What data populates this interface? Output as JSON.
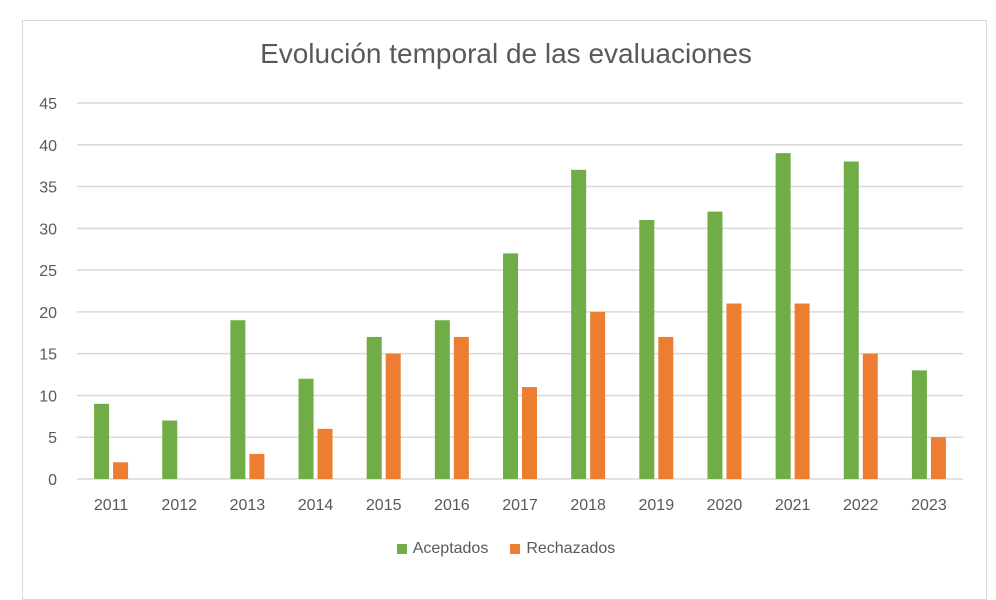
{
  "chart_data": {
    "type": "bar",
    "title": "Evolución temporal de las evaluaciones",
    "xlabel": "",
    "ylabel": "",
    "categories": [
      "2011",
      "2012",
      "2013",
      "2014",
      "2015",
      "2016",
      "2017",
      "2018",
      "2019",
      "2020",
      "2021",
      "2022",
      "2023"
    ],
    "series": [
      {
        "name": "Aceptados",
        "color": "#70AD47",
        "values": [
          9,
          7,
          19,
          12,
          17,
          19,
          27,
          37,
          31,
          32,
          39,
          38,
          13
        ]
      },
      {
        "name": "Rechazados",
        "color": "#ED7D31",
        "values": [
          2,
          0,
          3,
          6,
          15,
          17,
          11,
          20,
          17,
          21,
          21,
          15,
          5
        ]
      }
    ],
    "ylim": [
      0,
      45
    ],
    "yticks": [
      "0",
      "5",
      "10",
      "15",
      "20",
      "25",
      "30",
      "35",
      "40",
      "45"
    ],
    "grid": true,
    "legend_position": "bottom"
  }
}
